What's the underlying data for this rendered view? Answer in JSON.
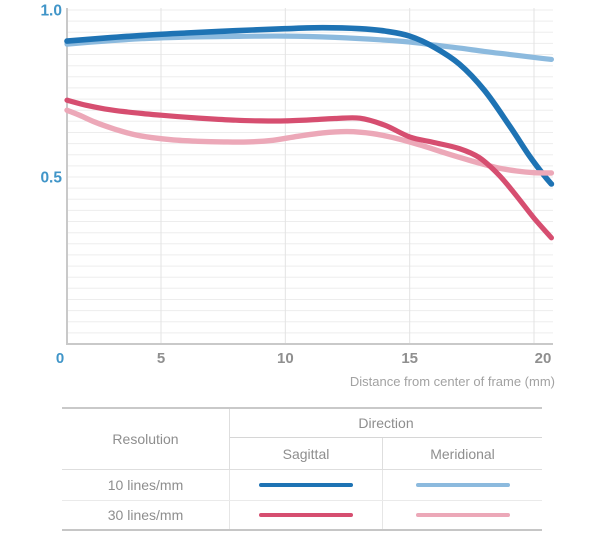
{
  "colors": {
    "sagittal_10": "#1e73b4",
    "meridional_10": "#8cbade",
    "sagittal_30": "#d64e70",
    "meridional_30": "#eca8b8",
    "tick_blue": "#4095c8",
    "tick_gray": "#8f8f8f",
    "axis_title_gray": "#a2a2a2",
    "grid_h": "#ededed",
    "grid_v": "#e3e3e3",
    "axis_line": "#c9c9c9"
  },
  "chart_data": {
    "type": "line",
    "title": "",
    "xlabel": "Distance from center of frame (mm)",
    "ylabel": "",
    "xlim": [
      0,
      20.7
    ],
    "ylim": [
      0,
      1.0
    ],
    "grid": true,
    "legend_position": "bottom-table",
    "y_ticks": [
      {
        "value": 1.0,
        "label": "1.0"
      },
      {
        "value": 0.5,
        "label": "0.5"
      }
    ],
    "x_ticks": [
      {
        "value": 0,
        "label": "0",
        "emphasis": true
      },
      {
        "value": 5,
        "label": "5"
      },
      {
        "value": 10,
        "label": "10"
      },
      {
        "value": 15,
        "label": "15"
      },
      {
        "value": 20,
        "label": "20"
      }
    ],
    "series": [
      {
        "key": "meridional_10",
        "resolution": "10 lines/mm",
        "direction": "Meridional",
        "color": "#8cbade",
        "stroke_width": 5.2,
        "points": [
          [
            0,
            0.898
          ],
          [
            2,
            0.907
          ],
          [
            4,
            0.914
          ],
          [
            6,
            0.919
          ],
          [
            8,
            0.921
          ],
          [
            10,
            0.922
          ],
          [
            12,
            0.918
          ],
          [
            14,
            0.91
          ],
          [
            15,
            0.904
          ],
          [
            16,
            0.895
          ],
          [
            17,
            0.886
          ],
          [
            18,
            0.876
          ],
          [
            19,
            0.867
          ],
          [
            20,
            0.858
          ],
          [
            20.7,
            0.852
          ]
        ]
      },
      {
        "key": "sagittal_10",
        "resolution": "10 lines/mm",
        "direction": "Sagittal",
        "color": "#1e73b4",
        "stroke_width": 5.6,
        "points": [
          [
            0,
            0.907
          ],
          [
            2,
            0.916
          ],
          [
            4,
            0.924
          ],
          [
            6,
            0.931
          ],
          [
            8,
            0.938
          ],
          [
            10,
            0.944
          ],
          [
            11.5,
            0.947
          ],
          [
            13,
            0.944
          ],
          [
            14,
            0.937
          ],
          [
            15,
            0.922
          ],
          [
            16,
            0.888
          ],
          [
            17,
            0.838
          ],
          [
            18,
            0.76
          ],
          [
            19,
            0.655
          ],
          [
            19.8,
            0.565
          ],
          [
            20.4,
            0.505
          ],
          [
            20.7,
            0.479
          ]
        ]
      },
      {
        "key": "meridional_30",
        "resolution": "30 lines/mm",
        "direction": "Meridional",
        "color": "#eca8b8",
        "stroke_width": 5.4,
        "points": [
          [
            0,
            0.7
          ],
          [
            0.7,
            0.684
          ],
          [
            1.5,
            0.664
          ],
          [
            2.5,
            0.644
          ],
          [
            3.5,
            0.628
          ],
          [
            4.5,
            0.618
          ],
          [
            5.5,
            0.611
          ],
          [
            6.5,
            0.607
          ],
          [
            7.5,
            0.605
          ],
          [
            8.5,
            0.605
          ],
          [
            9.5,
            0.61
          ],
          [
            10.5,
            0.622
          ],
          [
            11.5,
            0.632
          ],
          [
            12.5,
            0.636
          ],
          [
            13.5,
            0.63
          ],
          [
            14.5,
            0.615
          ],
          [
            15.5,
            0.594
          ],
          [
            16.5,
            0.57
          ],
          [
            17.5,
            0.548
          ],
          [
            18.5,
            0.528
          ],
          [
            19.3,
            0.518
          ],
          [
            20,
            0.513
          ],
          [
            20.7,
            0.512
          ]
        ]
      },
      {
        "key": "sagittal_30",
        "resolution": "30 lines/mm",
        "direction": "Sagittal",
        "color": "#d64e70",
        "stroke_width": 5.2,
        "points": [
          [
            0,
            0.73
          ],
          [
            1,
            0.715
          ],
          [
            2,
            0.704
          ],
          [
            3,
            0.696
          ],
          [
            4,
            0.69
          ],
          [
            5,
            0.685
          ],
          [
            6,
            0.679
          ],
          [
            7,
            0.674
          ],
          [
            8,
            0.67
          ],
          [
            9,
            0.668
          ],
          [
            10,
            0.668
          ],
          [
            11,
            0.671
          ],
          [
            12,
            0.675
          ],
          [
            13,
            0.676
          ],
          [
            14,
            0.655
          ],
          [
            15,
            0.62
          ],
          [
            16,
            0.603
          ],
          [
            17,
            0.585
          ],
          [
            17.8,
            0.558
          ],
          [
            18.6,
            0.505
          ],
          [
            19.3,
            0.443
          ],
          [
            20,
            0.377
          ],
          [
            20.7,
            0.318
          ]
        ]
      }
    ]
  },
  "table": {
    "resolution_header": "Resolution",
    "direction_header": "Direction",
    "col_sagittal": "Sagittal",
    "col_meridional": "Meridional",
    "rows": [
      {
        "label": "10 lines/mm",
        "sagittal_key": "sagittal_10",
        "meridional_key": "meridional_10"
      },
      {
        "label": "30 lines/mm",
        "sagittal_key": "sagittal_30",
        "meridional_key": "meridional_30"
      }
    ]
  }
}
